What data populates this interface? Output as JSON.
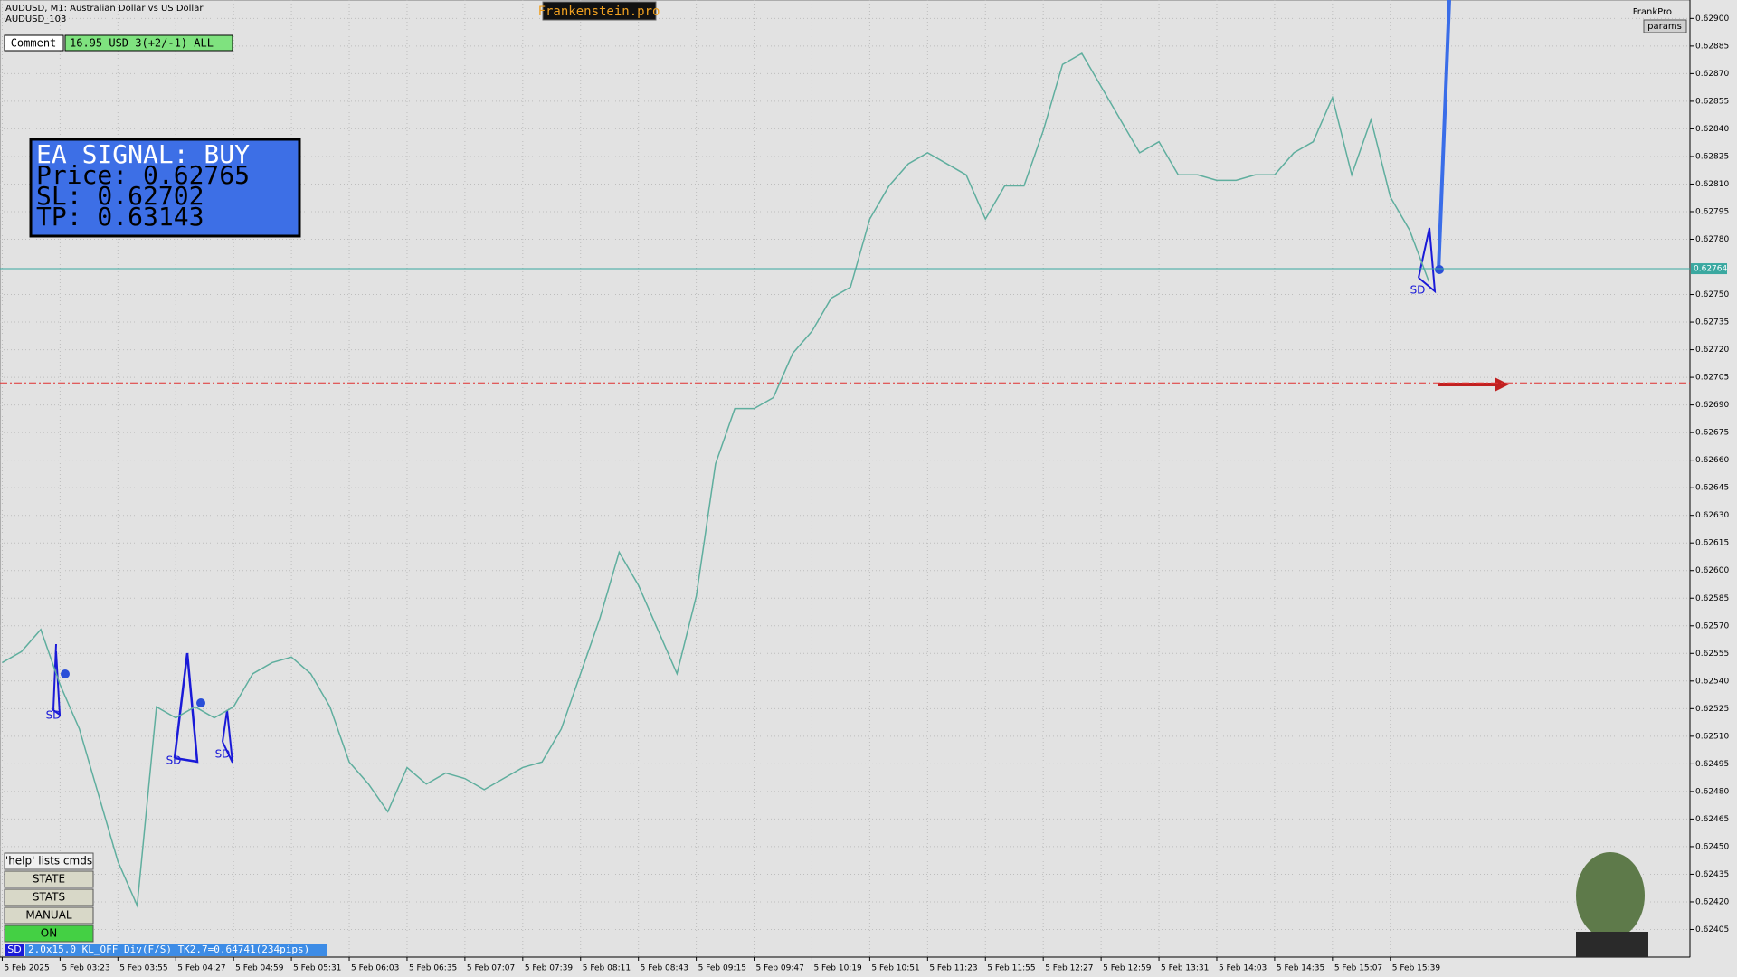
{
  "header": {
    "symbol": "AUDUSD, M1:  Australian Dollar vs US Dollar",
    "account": "AUDUSD_103",
    "brand": "Frankenstein.pro",
    "profile": "FrankPro",
    "params": "params"
  },
  "panels": {
    "comment": "Comment",
    "stats": "16.95 USD 3(+2/-1) ALL",
    "signal": [
      "EA SIGNAL: BUY",
      "Price: 0.62765",
      "SL:     0.62702",
      "TP:     0.63143"
    ],
    "buttons": [
      "'help' lists cmds",
      "STATE",
      "STATS",
      "MANUAL",
      "ON"
    ],
    "status_tag": "SD",
    "status": "2.0x15.0 KL_OFF Div(F/S) TK2.7=0.64741(234pips)"
  },
  "annotations": [
    "SD",
    "SD",
    "SD",
    "SD"
  ],
  "chart_data": {
    "type": "line",
    "color": "#5fae9e",
    "grid": true,
    "categories": [
      "5 Feb 2025",
      null,
      null,
      "5 Feb 03:23",
      null,
      null,
      "5 Feb 03:55",
      null,
      null,
      "5 Feb 04:27",
      null,
      null,
      "5 Feb 04:59",
      null,
      null,
      "5 Feb 05:31",
      null,
      null,
      "5 Feb 06:03",
      null,
      null,
      "5 Feb 06:35",
      null,
      null,
      "5 Feb 07:07",
      null,
      null,
      "5 Feb 07:39",
      null,
      null,
      "5 Feb 08:11",
      null,
      null,
      "5 Feb 08:43",
      null,
      null,
      "5 Feb 09:15",
      null,
      null,
      "5 Feb 09:47",
      null,
      null,
      "5 Feb 10:19",
      null,
      null,
      "5 Feb 10:51",
      null,
      null,
      "5 Feb 11:23",
      null,
      null,
      "5 Feb 11:55",
      null,
      null,
      "5 Feb 12:27",
      null,
      null,
      "5 Feb 12:59",
      null,
      null,
      "5 Feb 13:31",
      null,
      null,
      "5 Feb 14:03",
      null,
      null,
      "5 Feb 14:35",
      null,
      null,
      "5 Feb 15:07",
      null,
      null,
      "5 Feb 15:39",
      null,
      null
    ],
    "values": [
      0.6255,
      0.62556,
      0.62568,
      0.62538,
      0.62514,
      0.62478,
      0.62442,
      0.62418,
      0.62526,
      0.6252,
      0.62526,
      0.6252,
      0.62526,
      0.62544,
      0.6255,
      0.62553,
      0.62544,
      0.62526,
      0.62496,
      0.62484,
      0.62469,
      0.62493,
      0.62484,
      0.6249,
      0.62487,
      0.62481,
      0.62487,
      0.62493,
      0.62496,
      0.62514,
      0.62544,
      0.62574,
      0.6261,
      0.62592,
      0.62568,
      0.62544,
      0.62586,
      0.62658,
      0.62688,
      0.62688,
      0.62694,
      0.62718,
      0.6273,
      0.62748,
      0.62754,
      0.62791,
      0.62809,
      0.62821,
      0.62827,
      0.62821,
      0.62815,
      0.62791,
      0.62809,
      0.62809,
      0.62839,
      0.62875,
      0.62881,
      0.62863,
      0.62845,
      0.62827,
      0.62833,
      0.62815,
      0.62815,
      0.62812,
      0.62812,
      0.62815,
      0.62815,
      0.62827,
      0.62833,
      0.62857,
      0.62815,
      0.62845,
      0.62803,
      0.62785,
      0.62757
    ],
    "ylim": [
      0.6239,
      0.6291
    ],
    "yticks": [
      {
        "value": 0.62405,
        "label": "0.62405"
      },
      {
        "value": 0.6242,
        "label": "0.62420"
      },
      {
        "value": 0.62435,
        "label": "0.62435"
      },
      {
        "value": 0.6245,
        "label": "0.62450"
      },
      {
        "value": 0.62465,
        "label": "0.62465"
      },
      {
        "value": 0.6248,
        "label": "0.62480"
      },
      {
        "value": 0.62495,
        "label": "0.62495"
      },
      {
        "value": 0.6251,
        "label": "0.62510"
      },
      {
        "value": 0.62525,
        "label": "0.62525"
      },
      {
        "value": 0.6254,
        "label": "0.62540"
      },
      {
        "value": 0.62555,
        "label": "0.62555"
      },
      {
        "value": 0.6257,
        "label": "0.62570"
      },
      {
        "value": 0.62585,
        "label": "0.62585"
      },
      {
        "value": 0.626,
        "label": "0.62600"
      },
      {
        "value": 0.62615,
        "label": "0.62615"
      },
      {
        "value": 0.6263,
        "label": "0.62630"
      },
      {
        "value": 0.62645,
        "label": "0.62645"
      },
      {
        "value": 0.6266,
        "label": "0.62660"
      },
      {
        "value": 0.62675,
        "label": "0.62675"
      },
      {
        "value": 0.6269,
        "label": "0.62690"
      },
      {
        "value": 0.62705,
        "label": "0.62705"
      },
      {
        "value": 0.6272,
        "label": "0.62720"
      },
      {
        "value": 0.62735,
        "label": "0.62735"
      },
      {
        "value": 0.6275,
        "label": "0.62750"
      },
      {
        "value": 0.6278,
        "label": "0.62780"
      },
      {
        "value": 0.62795,
        "label": "0.62795"
      },
      {
        "value": 0.6281,
        "label": "0.62810"
      },
      {
        "value": 0.62825,
        "label": "0.62825"
      },
      {
        "value": 0.6284,
        "label": "0.62840"
      },
      {
        "value": 0.62855,
        "label": "0.62855"
      },
      {
        "value": 0.6287,
        "label": "0.62870"
      },
      {
        "value": 0.62885,
        "label": "0.62885"
      },
      {
        "value": 0.629,
        "label": "0.62900"
      }
    ],
    "current_price": {
      "value": 0.62764,
      "label": "0.62764"
    },
    "sl_line": 0.62702
  }
}
